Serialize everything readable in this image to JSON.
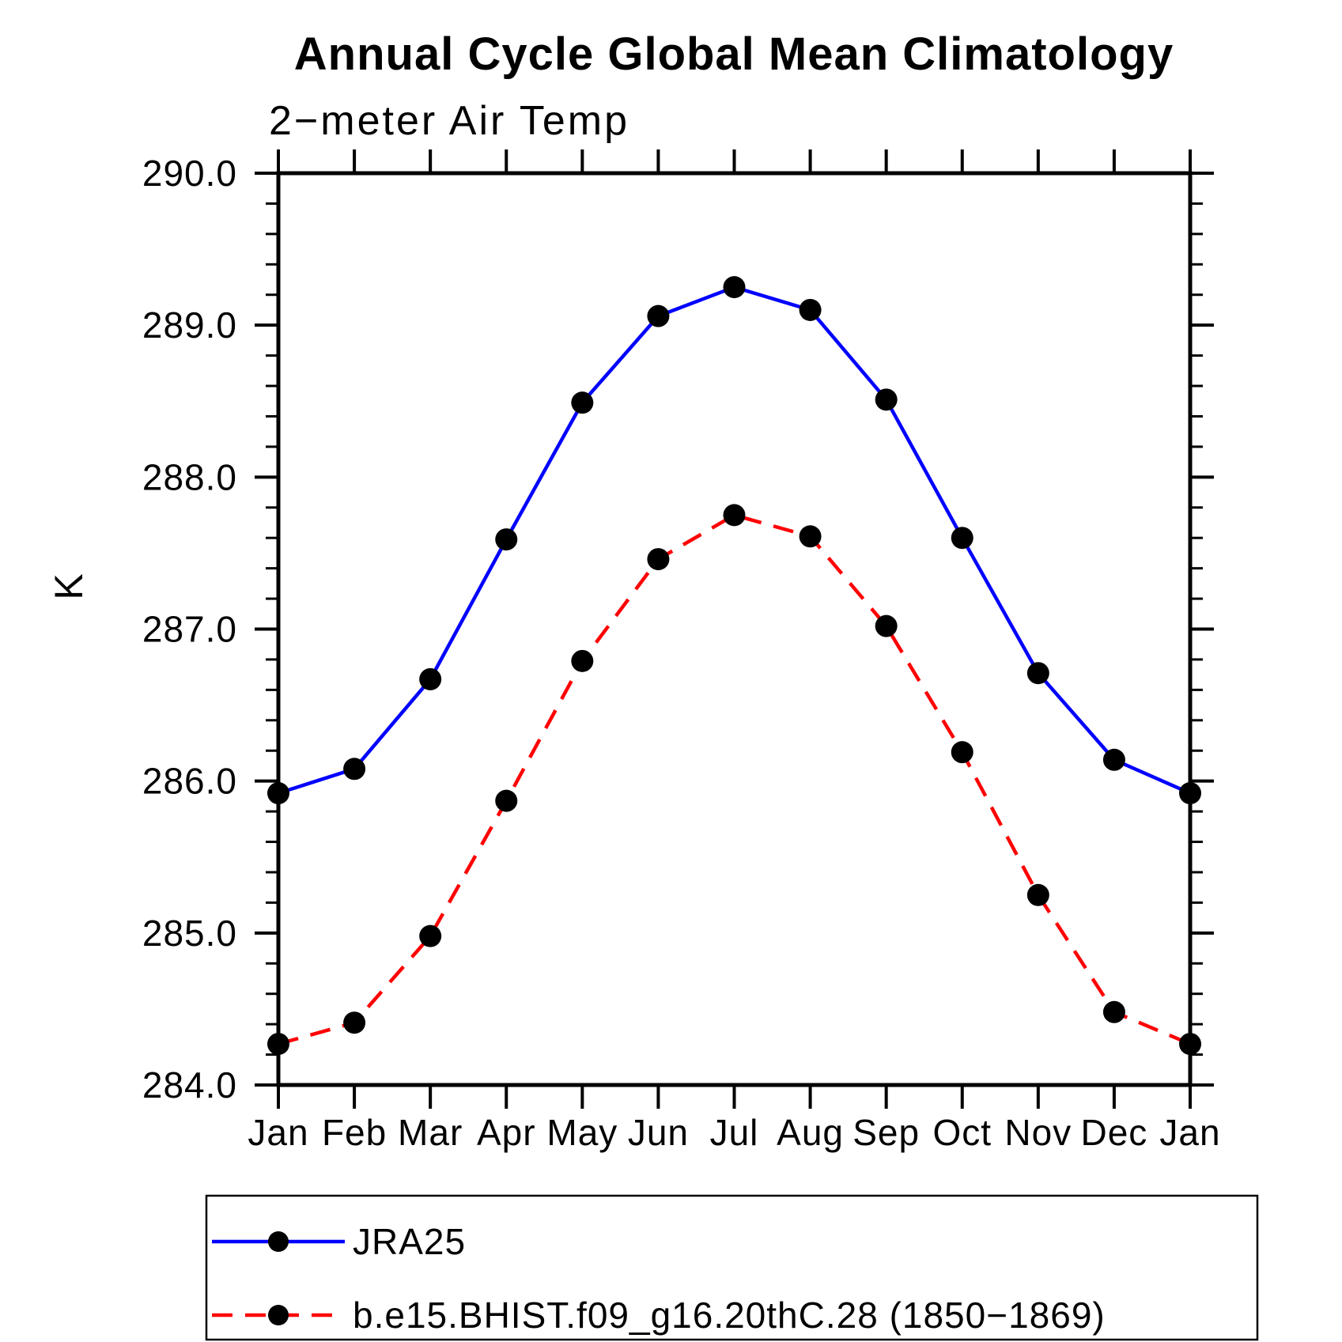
{
  "page": {
    "background_color": "#ffffff"
  },
  "chart_data": {
    "type": "line",
    "title": "Annual Cycle Global Mean Climatology",
    "subtitle": "2−meter Air Temp",
    "ylabel": "K",
    "xlabel": "",
    "x_categories": [
      "Jan",
      "Feb",
      "Mar",
      "Apr",
      "May",
      "Jun",
      "Jul",
      "Aug",
      "Sep",
      "Oct",
      "Nov",
      "Dec",
      "Jan"
    ],
    "ylim": [
      284.0,
      290.0
    ],
    "y_major_step": 1.0,
    "y_minor_step": 0.2,
    "y_tick_labels": [
      "284.0",
      "285.0",
      "286.0",
      "287.0",
      "288.0",
      "289.0",
      "290.0"
    ],
    "grid": false,
    "axis_color": "#000000",
    "legend_position": "bottom-left-box",
    "marker": "filled-circle",
    "marker_color": "#000000",
    "series": [
      {
        "name": "JRA25",
        "color": "#0000ff",
        "line_style": "solid",
        "values": [
          285.92,
          286.08,
          286.67,
          287.59,
          288.49,
          289.06,
          289.25,
          289.1,
          288.51,
          287.6,
          286.71,
          286.14,
          285.92
        ]
      },
      {
        "name": "b.e15.BHIST.f09_g16.20thC.28 (1850−1869)",
        "color": "#ff0000",
        "line_style": "dashed",
        "values": [
          284.27,
          284.41,
          284.98,
          285.87,
          286.79,
          287.46,
          287.75,
          287.61,
          287.02,
          286.19,
          285.25,
          284.48,
          284.27
        ]
      }
    ]
  }
}
